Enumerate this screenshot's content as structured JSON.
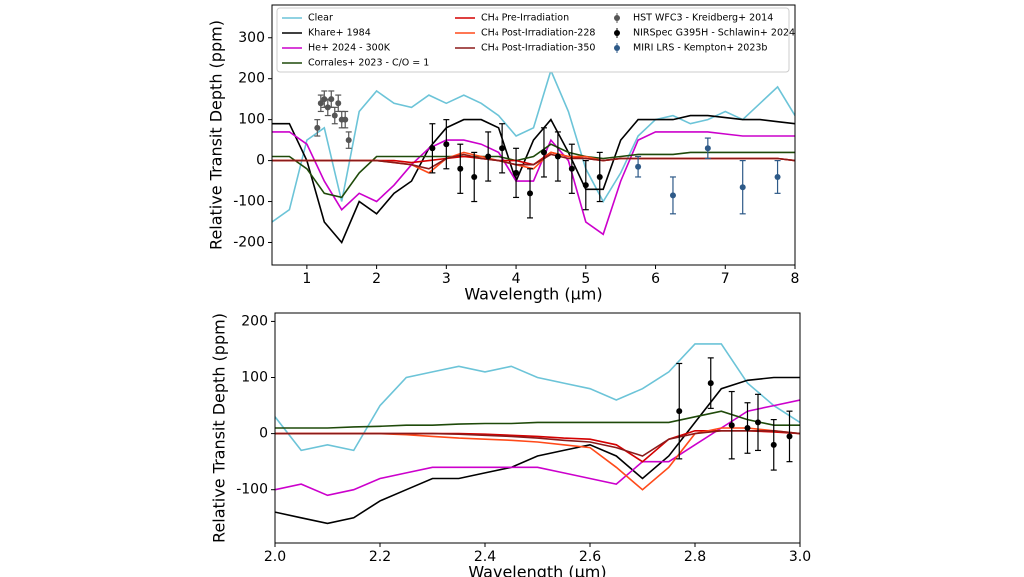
{
  "chart_data": [
    {
      "type": "line",
      "xlabel": "Wavelength (μm)",
      "ylabel": "Relative Transit Depth (ppm)",
      "xlim": [
        0.5,
        8
      ],
      "ylim": [
        -255,
        380
      ],
      "xticks": [
        1,
        2,
        3,
        4,
        5,
        6,
        7,
        8
      ],
      "yticks": [
        -200,
        -100,
        0,
        100,
        200,
        300
      ],
      "legend": "upper left",
      "x": [
        0.5,
        0.75,
        1,
        1.25,
        1.5,
        1.75,
        2,
        2.25,
        2.5,
        2.75,
        3,
        3.25,
        3.5,
        3.75,
        4,
        4.25,
        4.5,
        4.75,
        5,
        5.25,
        5.5,
        5.75,
        6,
        6.25,
        6.5,
        6.75,
        7,
        7.25,
        7.5,
        7.75,
        8
      ],
      "series": [
        {
          "name": "Clear",
          "color": "#6cc4d8",
          "values": [
            -150,
            -120,
            50,
            80,
            -100,
            120,
            170,
            140,
            130,
            160,
            140,
            160,
            140,
            110,
            60,
            80,
            220,
            120,
            -20,
            -100,
            -30,
            60,
            100,
            110,
            90,
            100,
            120,
            100,
            140,
            180,
            110
          ]
        },
        {
          "name": "Khare+ 1984",
          "color": "#000000",
          "values": [
            90,
            90,
            0,
            -150,
            -200,
            -100,
            -130,
            -80,
            -50,
            30,
            80,
            100,
            100,
            80,
            -50,
            50,
            100,
            20,
            -70,
            -70,
            50,
            100,
            100,
            100,
            110,
            110,
            105,
            100,
            100,
            95,
            90
          ]
        },
        {
          "name": "He+ 2024 - 300K",
          "color": "#cc00cc",
          "values": [
            70,
            70,
            40,
            -50,
            -120,
            -80,
            -100,
            -60,
            -10,
            30,
            50,
            50,
            40,
            20,
            -50,
            -50,
            50,
            0,
            -150,
            -180,
            -50,
            50,
            70,
            70,
            70,
            70,
            65,
            60,
            60,
            60,
            60
          ]
        },
        {
          "name": "Corrales+ 2023 - C/O = 1",
          "color": "#1f4a0a",
          "values": [
            10,
            10,
            -20,
            -80,
            -90,
            -30,
            10,
            10,
            10,
            10,
            10,
            10,
            10,
            10,
            0,
            10,
            40,
            20,
            10,
            5,
            10,
            15,
            15,
            15,
            20,
            20,
            20,
            20,
            20,
            20,
            20
          ]
        },
        {
          "name": "CH₄ Pre-Irradiation",
          "color": "#d40000",
          "values": [
            0,
            0,
            0,
            0,
            0,
            0,
            0,
            0,
            -5,
            0,
            5,
            10,
            5,
            0,
            0,
            -10,
            20,
            10,
            5,
            0,
            5,
            5,
            5,
            5,
            5,
            5,
            5,
            5,
            5,
            5,
            0
          ]
        },
        {
          "name": "CH₄ Post-Irradiation-228",
          "color": "#ff4a1a",
          "values": [
            0,
            0,
            0,
            0,
            0,
            0,
            0,
            -5,
            -10,
            -30,
            5,
            20,
            10,
            0,
            -10,
            -20,
            20,
            10,
            10,
            0,
            5,
            5,
            5,
            5,
            5,
            5,
            5,
            5,
            5,
            5,
            0
          ]
        },
        {
          "name": "CH₄ Post-Irradiation-350",
          "color": "#8b1a1a",
          "values": [
            0,
            0,
            0,
            0,
            0,
            0,
            0,
            -5,
            -10,
            -20,
            5,
            15,
            5,
            0,
            -10,
            -10,
            15,
            5,
            5,
            0,
            5,
            5,
            5,
            5,
            5,
            5,
            5,
            5,
            5,
            5,
            0
          ]
        },
        {
          "name": "HST WFC3 - Kreidberg+ 2014",
          "color": "#555555",
          "x": [
            1.15,
            1.2,
            1.25,
            1.3,
            1.35,
            1.4,
            1.45,
            1.5,
            1.55,
            1.6
          ],
          "values": [
            80,
            140,
            150,
            130,
            150,
            110,
            140,
            100,
            100,
            50
          ],
          "errors": [
            20,
            20,
            20,
            20,
            20,
            20,
            20,
            20,
            20,
            20
          ]
        },
        {
          "name": "NIRSpec G395H - Schlawin+ 2024",
          "color": "#000000",
          "x": [
            2.8,
            3.0,
            3.2,
            3.4,
            3.6,
            3.8,
            4.0,
            4.2,
            4.4,
            4.6,
            4.8,
            5.0,
            5.2
          ],
          "values": [
            30,
            40,
            -20,
            -40,
            10,
            30,
            -30,
            -80,
            20,
            10,
            -20,
            -60,
            -40
          ],
          "errors": [
            60,
            60,
            60,
            60,
            60,
            60,
            60,
            60,
            60,
            60,
            60,
            60,
            60
          ]
        },
        {
          "name": "MIRI LRS - Kempton+ 2023b",
          "color": "#2e5a88",
          "x": [
            5.75,
            6.25,
            6.75,
            7.25,
            7.75
          ],
          "values": [
            -15,
            -85,
            30,
            -65,
            -40
          ],
          "errors": [
            25,
            45,
            25,
            65,
            40
          ]
        }
      ]
    },
    {
      "type": "line",
      "xlabel": "Wavelength (μm)",
      "ylabel": "Relative Transit Depth (ppm)",
      "xlim": [
        2.0,
        3.0
      ],
      "ylim": [
        -195,
        215
      ],
      "xticks": [
        {
          "value": 2,
          "label": "2.0"
        },
        2.2,
        2.4,
        2.6,
        2.8,
        {
          "value": 3,
          "label": "3.0"
        }
      ],
      "yticks": [
        -100,
        0,
        100,
        200
      ],
      "x": [
        2,
        2.05,
        2.1,
        2.15,
        2.2,
        2.25,
        2.3,
        2.35,
        2.4,
        2.45,
        2.5,
        2.55,
        2.6,
        2.65,
        2.7,
        2.75,
        2.8,
        2.85,
        2.9,
        2.95,
        3
      ],
      "series": [
        {
          "color": "#6cc4d8",
          "values": [
            30,
            -30,
            -20,
            -30,
            50,
            100,
            110,
            120,
            110,
            120,
            100,
            90,
            80,
            60,
            80,
            110,
            160,
            160,
            90,
            50,
            20
          ]
        },
        {
          "color": "#000000",
          "values": [
            -140,
            -150,
            -160,
            -150,
            -120,
            -100,
            -80,
            -80,
            -70,
            -60,
            -40,
            -30,
            -20,
            -40,
            -80,
            -40,
            20,
            80,
            95,
            100,
            100
          ]
        },
        {
          "color": "#cc00cc",
          "values": [
            -100,
            -90,
            -110,
            -100,
            -80,
            -70,
            -60,
            -60,
            -60,
            -60,
            -60,
            -70,
            -80,
            -90,
            -50,
            -50,
            -20,
            10,
            40,
            50,
            60
          ]
        },
        {
          "color": "#1f4a0a",
          "values": [
            10,
            10,
            10,
            12,
            13,
            15,
            15,
            17,
            18,
            18,
            20,
            20,
            20,
            20,
            20,
            20,
            30,
            40,
            25,
            15,
            15
          ]
        },
        {
          "color": "#d40000",
          "values": [
            0,
            0,
            0,
            0,
            0,
            0,
            0,
            0,
            -1,
            -3,
            -5,
            -8,
            -10,
            -20,
            -50,
            -10,
            5,
            5,
            5,
            3,
            0
          ]
        },
        {
          "color": "#ff4a1a",
          "values": [
            0,
            0,
            0,
            0,
            0,
            -2,
            -5,
            -8,
            -10,
            -12,
            -15,
            -20,
            -25,
            -60,
            -100,
            -60,
            0,
            10,
            10,
            5,
            0
          ]
        },
        {
          "color": "#8b1a1a",
          "values": [
            0,
            0,
            0,
            0,
            0,
            0,
            0,
            -1,
            -3,
            -5,
            -8,
            -12,
            -15,
            -25,
            -40,
            -10,
            0,
            5,
            5,
            5,
            0
          ]
        },
        {
          "color": "#000000",
          "x": [
            2.77,
            2.83,
            2.87,
            2.9,
            2.92,
            2.95,
            2.98
          ],
          "values": [
            40,
            90,
            15,
            10,
            20,
            -20,
            -5
          ],
          "errors": [
            85,
            45,
            60,
            45,
            50,
            45,
            45
          ]
        }
      ]
    }
  ]
}
